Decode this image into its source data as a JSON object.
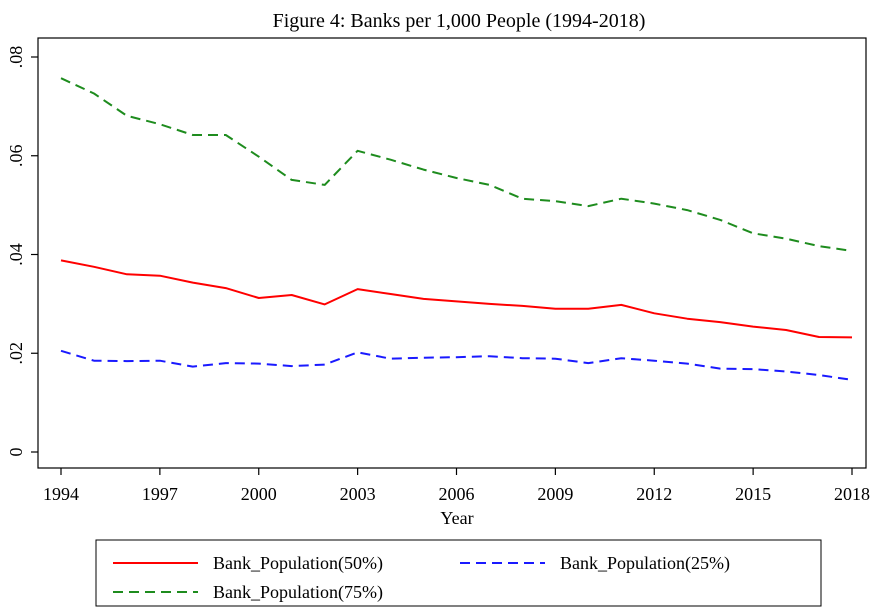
{
  "chart_data": {
    "type": "line",
    "title": "Figure 4: Banks per 1,000 People (1994-2018)",
    "xlabel": "Year",
    "ylabel": "",
    "x": [
      1994,
      1995,
      1996,
      1997,
      1998,
      1999,
      2000,
      2001,
      2002,
      2003,
      2004,
      2005,
      2006,
      2007,
      2008,
      2009,
      2010,
      2011,
      2012,
      2013,
      2014,
      2015,
      2016,
      2017,
      2018
    ],
    "xlim": [
      1994,
      2018
    ],
    "ylim": [
      0,
      0.08
    ],
    "xticks": [
      1994,
      1997,
      2000,
      2003,
      2006,
      2009,
      2012,
      2015,
      2018
    ],
    "xtick_labels": [
      "1994",
      "1997",
      "2000",
      "2003",
      "2006",
      "2009",
      "2012",
      "2015",
      "2018"
    ],
    "yticks": [
      0,
      0.02,
      0.04,
      0.06,
      0.08
    ],
    "ytick_labels": [
      "0",
      ".02",
      ".04",
      ".06",
      ".08"
    ],
    "grid": false,
    "legend_position": "bottom",
    "series": [
      {
        "name": "Bank_Population(50%)",
        "color": "#ff0000",
        "dash": "solid",
        "values": [
          0.0388,
          0.0375,
          0.036,
          0.0357,
          0.0343,
          0.0332,
          0.0312,
          0.0318,
          0.0299,
          0.033,
          0.032,
          0.031,
          0.0305,
          0.03,
          0.0296,
          0.029,
          0.029,
          0.0298,
          0.0281,
          0.027,
          0.0263,
          0.0254,
          0.0247,
          0.0233,
          0.0232
        ]
      },
      {
        "name": "Bank_Population(25%)",
        "color": "#1a1aff",
        "dash": "dashed",
        "values": [
          0.0205,
          0.0185,
          0.0184,
          0.0185,
          0.0173,
          0.018,
          0.0179,
          0.0174,
          0.0177,
          0.0202,
          0.0189,
          0.0191,
          0.0192,
          0.0194,
          0.019,
          0.0189,
          0.018,
          0.019,
          0.0185,
          0.0179,
          0.0169,
          0.0168,
          0.0163,
          0.0156,
          0.0146
        ]
      },
      {
        "name": "Bank_Population(75%)",
        "color": "#1e8c1e",
        "dash": "dashed",
        "values": [
          0.0757,
          0.0726,
          0.0681,
          0.0664,
          0.0642,
          0.0642,
          0.0598,
          0.0551,
          0.0541,
          0.061,
          0.0592,
          0.0572,
          0.0555,
          0.0541,
          0.0513,
          0.0508,
          0.0498,
          0.0513,
          0.0503,
          0.049,
          0.047,
          0.0443,
          0.0432,
          0.0417,
          0.0407
        ]
      }
    ]
  }
}
